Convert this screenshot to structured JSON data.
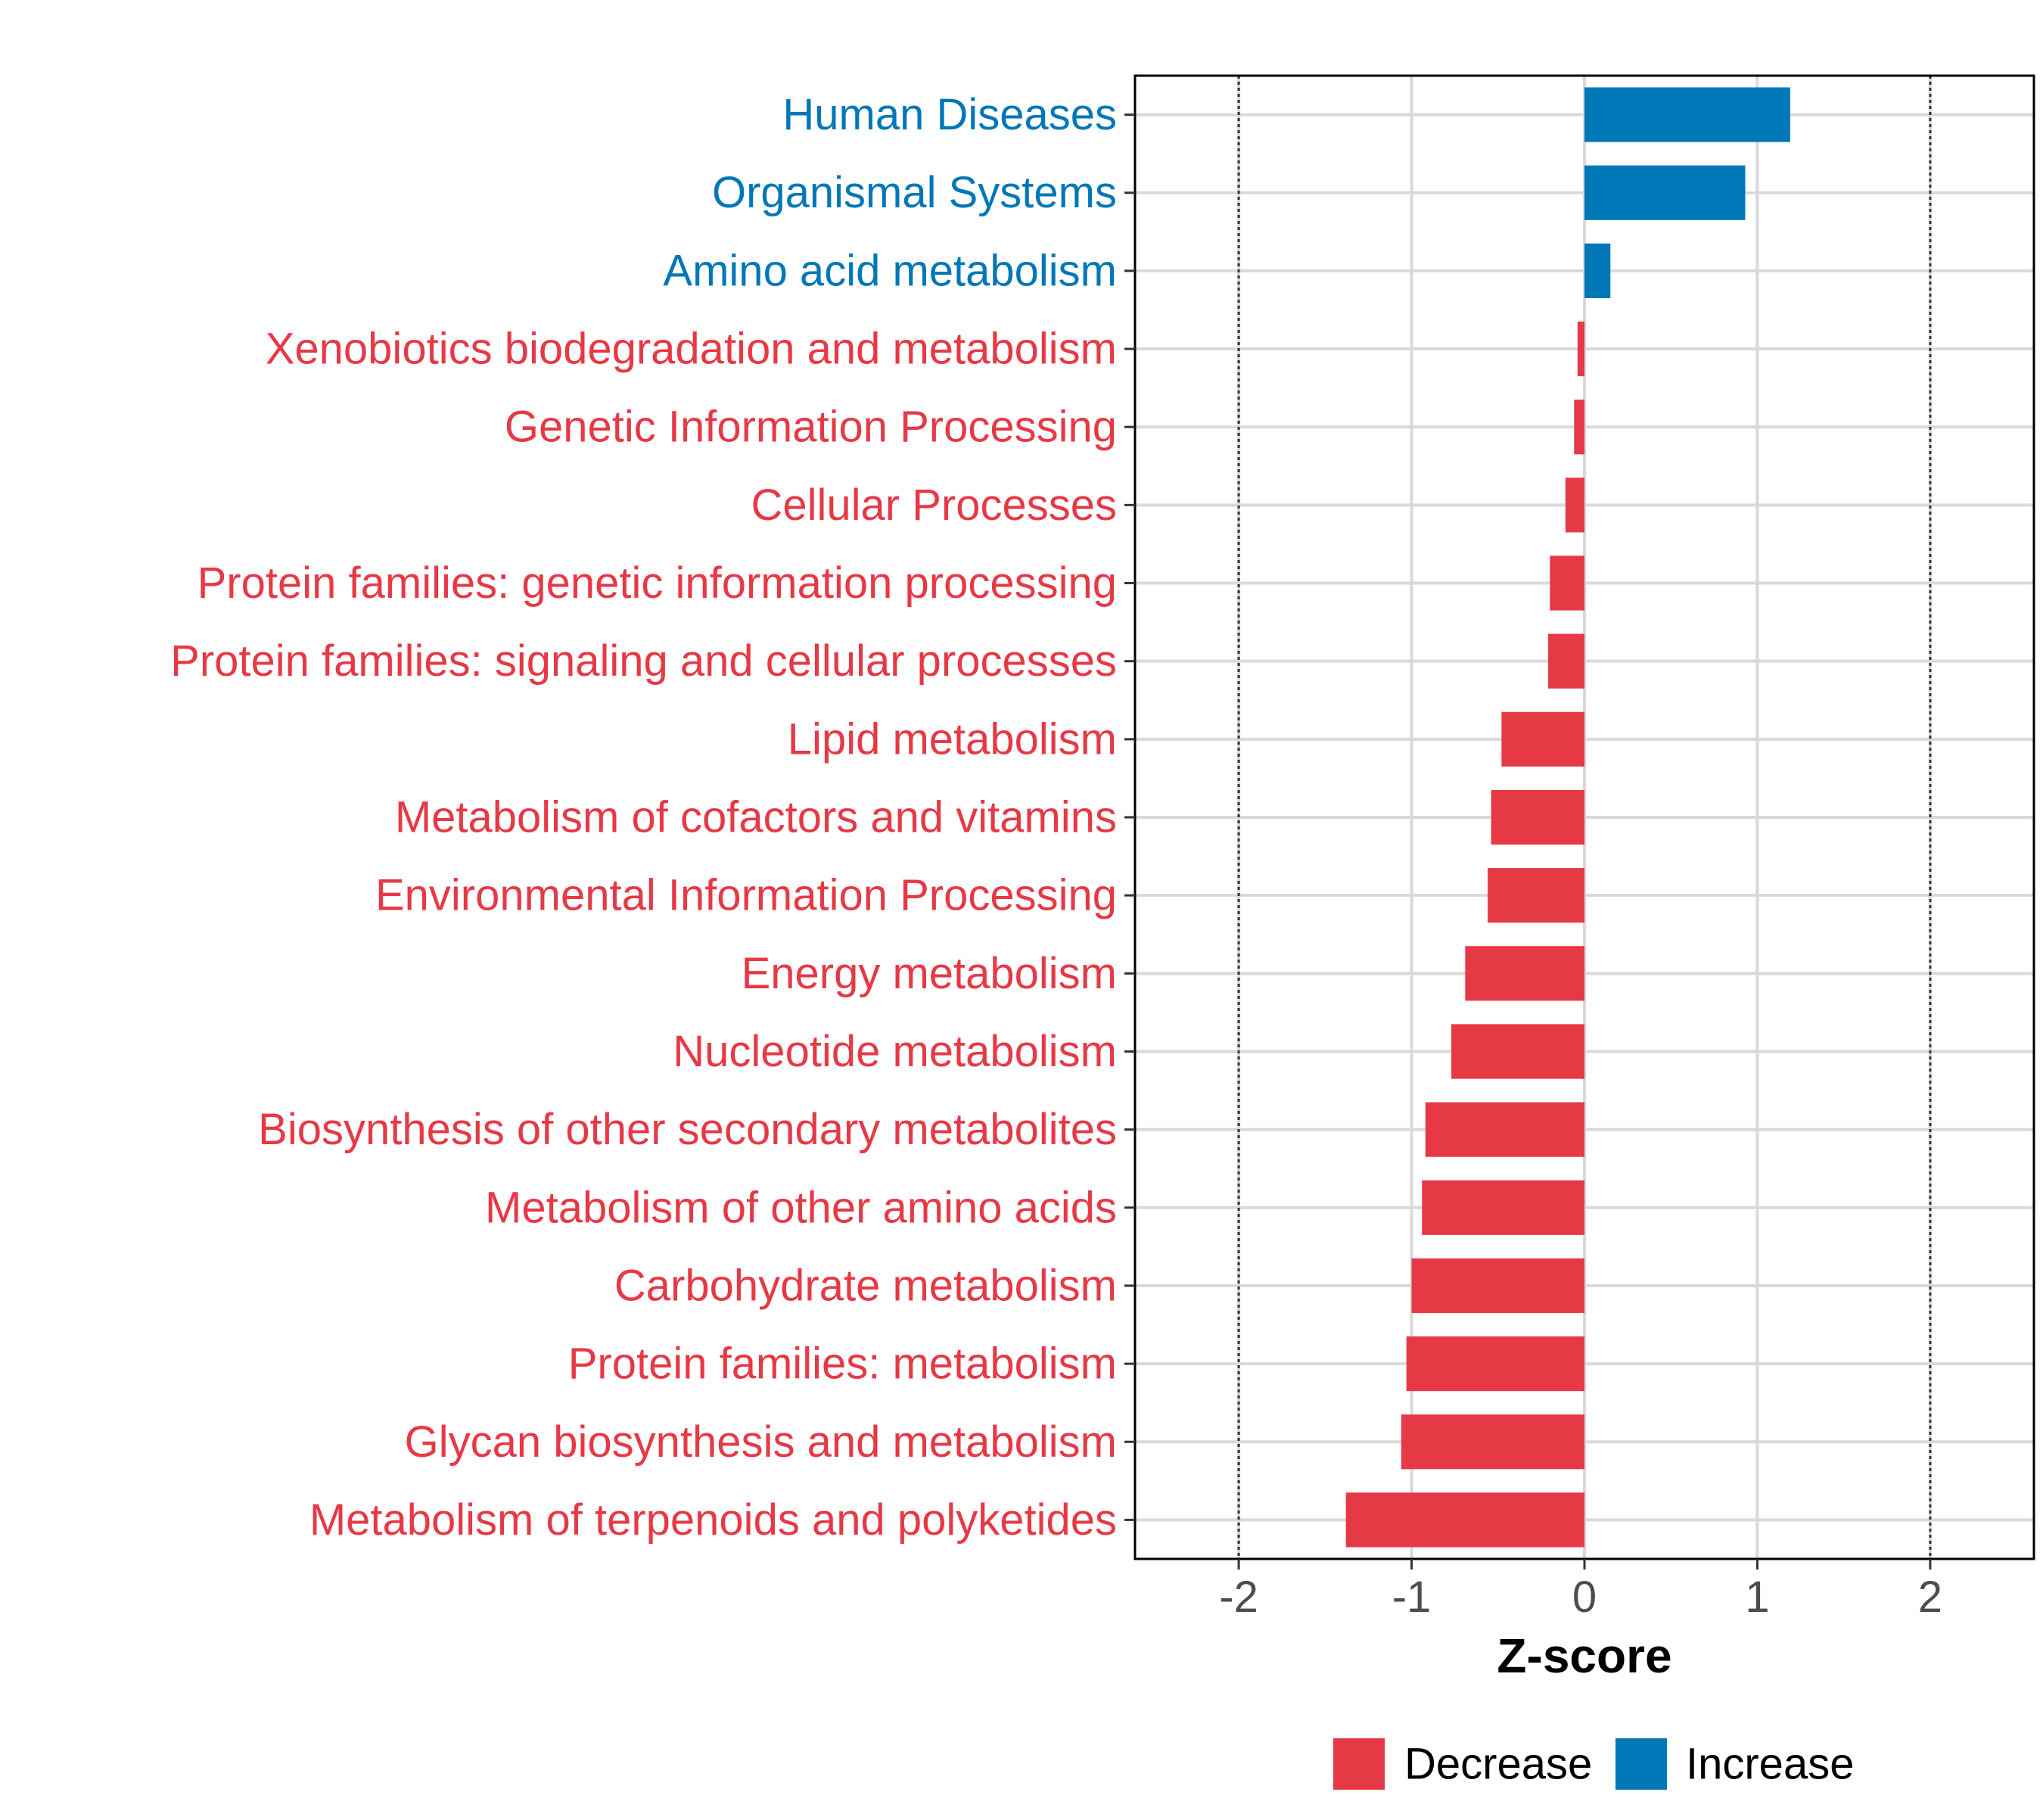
{
  "chart_data": {
    "type": "bar",
    "orientation": "horizontal",
    "xlabel": "Z-score",
    "xlim": [
      -2.6,
      2.6
    ],
    "xticks": [
      -2,
      -1,
      0,
      1,
      2
    ],
    "reference_lines": [
      -2,
      2
    ],
    "grid": true,
    "legend_position": "bottom",
    "legend": [
      {
        "label": "Decrease",
        "color": "#E63946"
      },
      {
        "label": "Increase",
        "color": "#0077B6"
      }
    ],
    "categories": [
      "Human Diseases",
      "Organismal Systems",
      "Amino acid metabolism",
      "Xenobiotics biodegradation and metabolism",
      "Genetic Information Processing",
      "Cellular Processes",
      "Protein families: genetic information processing",
      "Protein families: signaling and cellular processes",
      "Lipid metabolism",
      "Metabolism of cofactors and vitamins",
      "Environmental Information Processing",
      "Energy metabolism",
      "Nucleotide metabolism",
      "Biosynthesis of other secondary metabolites",
      "Metabolism of other amino acids",
      "Carbohydrate metabolism",
      "Protein families: metabolism",
      "Glycan biosynthesis and metabolism",
      "Metabolism of terpenoids and polyketides"
    ],
    "values": [
      1.19,
      0.93,
      0.15,
      -0.04,
      -0.06,
      -0.11,
      -0.2,
      -0.21,
      -0.48,
      -0.54,
      -0.56,
      -0.69,
      -0.77,
      -0.92,
      -0.94,
      -1.0,
      -1.03,
      -1.06,
      -1.38
    ],
    "groups": [
      "Increase",
      "Increase",
      "Increase",
      "Decrease",
      "Decrease",
      "Decrease",
      "Decrease",
      "Decrease",
      "Decrease",
      "Decrease",
      "Decrease",
      "Decrease",
      "Decrease",
      "Decrease",
      "Decrease",
      "Decrease",
      "Decrease",
      "Decrease",
      "Decrease"
    ]
  }
}
